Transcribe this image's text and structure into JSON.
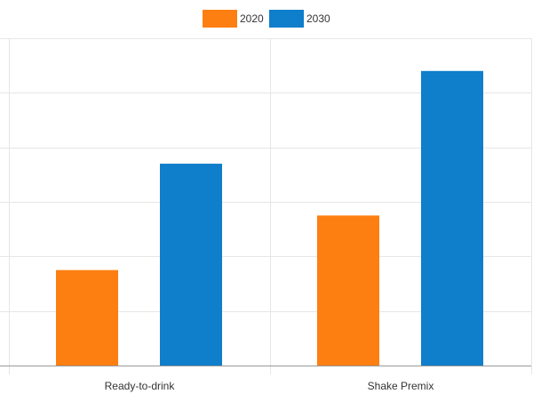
{
  "chart_data": {
    "type": "bar",
    "categories": [
      "Ready-to-drink",
      "Shake Premix"
    ],
    "series": [
      {
        "name": "2020",
        "color": "#fd7f11",
        "values": [
          1.75,
          2.75
        ]
      },
      {
        "name": "2030",
        "color": "#0f7ecb",
        "values": [
          3.7,
          5.4
        ]
      }
    ],
    "ylim": [
      0,
      6
    ],
    "y_gridlines": [
      1,
      2,
      3,
      4,
      5,
      6
    ],
    "grid": true,
    "legend": "top-center",
    "title": "",
    "xlabel": "",
    "ylabel": ""
  }
}
